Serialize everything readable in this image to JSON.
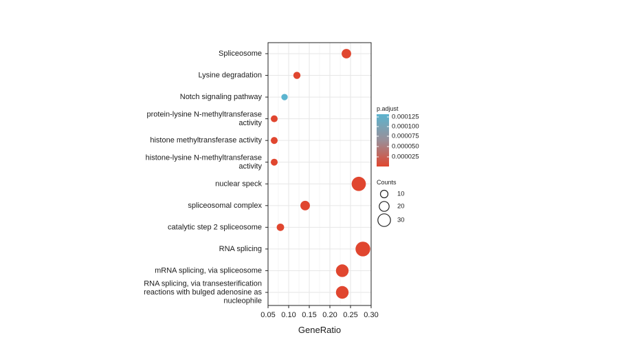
{
  "chart_data": {
    "type": "scatter",
    "xlabel": "GeneRatio",
    "ylabel": "",
    "xlim": [
      0.05,
      0.3
    ],
    "xticks": [
      "0.05",
      "0.10",
      "0.15",
      "0.20",
      "0.25",
      "0.30"
    ],
    "xtick_values": [
      0.05,
      0.1,
      0.15,
      0.2,
      0.25,
      0.3
    ],
    "grid": true,
    "points": [
      {
        "term": [
          "Spliceosome"
        ],
        "gene_ratio": 0.24,
        "count": 18,
        "p_adjust": 5e-06
      },
      {
        "term": [
          "Lysine degradation"
        ],
        "gene_ratio": 0.12,
        "count": 9,
        "p_adjust": 8e-06
      },
      {
        "term": [
          "Notch signaling pathway"
        ],
        "gene_ratio": 0.09,
        "count": 6,
        "p_adjust": 0.000135
      },
      {
        "term": [
          "protein-lysine N-methyltransferase",
          "activity"
        ],
        "gene_ratio": 0.065,
        "count": 8,
        "p_adjust": 6e-06
      },
      {
        "term": [
          "histone methyltransferase activity"
        ],
        "gene_ratio": 0.065,
        "count": 8,
        "p_adjust": 6e-06
      },
      {
        "term": [
          "histone-lysine N-methyltransferase",
          "activity"
        ],
        "gene_ratio": 0.065,
        "count": 8,
        "p_adjust": 6e-06
      },
      {
        "term": [
          "nuclear speck"
        ],
        "gene_ratio": 0.27,
        "count": 36,
        "p_adjust": 2e-06
      },
      {
        "term": [
          "spliceosomal complex"
        ],
        "gene_ratio": 0.14,
        "count": 18,
        "p_adjust": 3e-06
      },
      {
        "term": [
          "catalytic step 2 spliceosome"
        ],
        "gene_ratio": 0.08,
        "count": 10,
        "p_adjust": 4e-06
      },
      {
        "term": [
          "RNA splicing"
        ],
        "gene_ratio": 0.28,
        "count": 38,
        "p_adjust": 2e-06
      },
      {
        "term": [
          "mRNA splicing, via spliceosome"
        ],
        "gene_ratio": 0.23,
        "count": 30,
        "p_adjust": 2e-06
      },
      {
        "term": [
          "RNA splicing, via transesterification",
          "reactions with bulged adenosine as",
          "nucleophile"
        ],
        "gene_ratio": 0.23,
        "count": 30,
        "p_adjust": 2e-06
      }
    ],
    "color_legend": {
      "title": "p.adjust",
      "labels": [
        "0.000125",
        "0.000100",
        "0.000075",
        "0.000050",
        "0.000025"
      ],
      "values": [
        0.000125,
        0.0001,
        7.5e-05,
        5e-05,
        2.5e-05
      ],
      "low_color": "#e0462f",
      "high_color": "#5bb4cf"
    },
    "size_legend": {
      "title": "Counts",
      "labels": [
        "10",
        "20",
        "30"
      ],
      "values": [
        10,
        20,
        30
      ]
    },
    "legend_position": "right"
  }
}
